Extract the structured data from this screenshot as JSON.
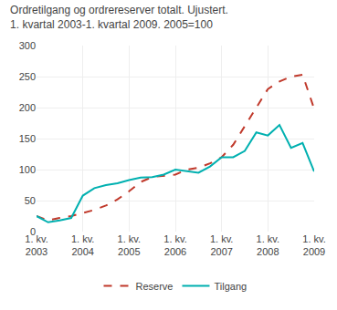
{
  "chart_data": {
    "type": "line",
    "title": "Ordretilgang og ordrereserver totalt. Ujustert.",
    "subtitle": "1. kvartal 2003-1. kvartal 2009. 2005=100",
    "categories": [
      "1. kv.\n2003",
      null,
      null,
      null,
      "1. kv.\n2004",
      null,
      null,
      null,
      "1. kv.\n2005",
      null,
      null,
      null,
      "1. kv.\n2006",
      null,
      null,
      null,
      "1. kv.\n2007",
      null,
      null,
      null,
      "1. kv.\n2008",
      null,
      null,
      null,
      "1. kv.\n2009"
    ],
    "series": [
      {
        "name": "Reserve",
        "color": "#c0392b",
        "line_style": "dash",
        "values": [
          25,
          18,
          22,
          25,
          30,
          35,
          42,
          52,
          65,
          80,
          88,
          90,
          92,
          100,
          103,
          110,
          120,
          140,
          170,
          200,
          230,
          242,
          250,
          253,
          198
        ]
      },
      {
        "name": "Tilgang",
        "color": "#00b0b0",
        "line_style": "solid",
        "values": [
          25,
          15,
          18,
          22,
          58,
          70,
          75,
          78,
          83,
          87,
          88,
          92,
          100,
          98,
          95,
          105,
          120,
          120,
          130,
          160,
          155,
          172,
          135,
          143,
          97
        ]
      }
    ],
    "ylim": [
      0,
      300
    ],
    "yticks": [
      0,
      50,
      100,
      150,
      200,
      250,
      300
    ],
    "grid": true,
    "legend": "bottom"
  }
}
